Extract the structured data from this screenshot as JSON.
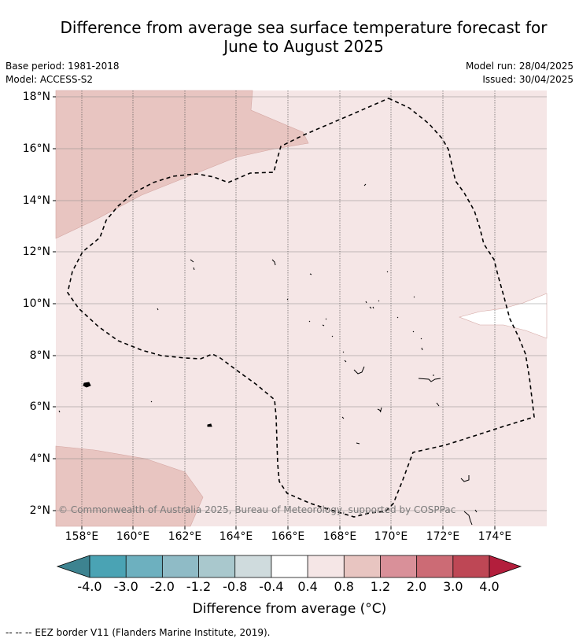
{
  "title_line1": "Difference from average sea surface temperature forecast for",
  "title_line2": "June to August 2025",
  "base_period": "Base period: 1981-2018",
  "model": "Model: ACCESS-S2",
  "model_run": "Model run: 28/04/2025",
  "issued": "Issued: 30/04/2025",
  "copyright": "© Commonwealth of Australia 2025, Bureau of Meteorology, supported by COSPPac",
  "lat_labels": [
    "18°N",
    "16°N",
    "14°N",
    "12°N",
    "10°N",
    "8°N",
    "6°N",
    "4°N",
    "2°N"
  ],
  "lon_labels": [
    "158°E",
    "160°E",
    "162°E",
    "164°E",
    "166°E",
    "168°E",
    "170°E",
    "172°E",
    "174°E"
  ],
  "colorbar": {
    "ticks": [
      "-4.0",
      "-3.0",
      "-2.0",
      "-1.2",
      "-0.8",
      "-0.4",
      "0.4",
      "0.8",
      "1.2",
      "2.0",
      "3.0",
      "4.0"
    ],
    "colors": [
      "#4aa3b4",
      "#6db0bf",
      "#8fbbc6",
      "#a9c8cd",
      "#cfdbdd",
      "#ffffff",
      "#f5e6e6",
      "#e8c5c1",
      "#d99099",
      "#cc6b75",
      "#be4755"
    ],
    "low_extend_color": "#3d8390",
    "high_extend_color": "#b31e3c",
    "title": "Difference from average (°C)"
  },
  "map_colors": {
    "anomaly_0_4_to_0_8": "#f5e6e6",
    "anomaly_0_8_to_1_2": "#e8c5c1",
    "neutral": "#ffffff"
  },
  "footer": "--  --  -- EEZ border V11 (Flanders Marine Institute, 2019)."
}
